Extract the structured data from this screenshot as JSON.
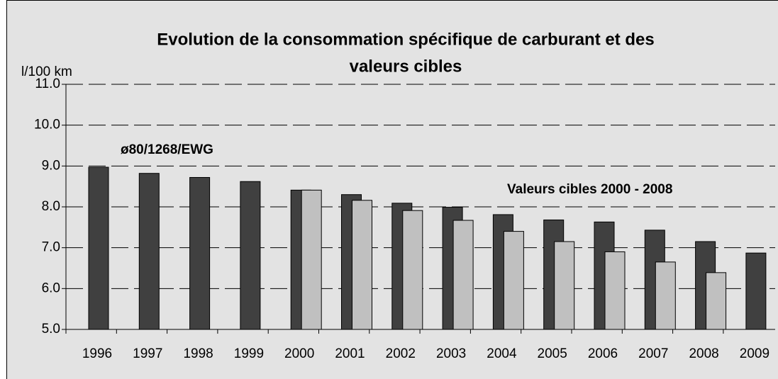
{
  "chart_data": {
    "type": "bar",
    "title": [
      "Evolution de la consommation spécifique de carburant et des",
      "valeurs cibles"
    ],
    "y_label": "l/100 km",
    "categories": [
      "1996",
      "1997",
      "1998",
      "1999",
      "2000",
      "2001",
      "2002",
      "2003",
      "2004",
      "2005",
      "2006",
      "2007",
      "2008",
      "2009"
    ],
    "series": [
      {
        "name": "ø80/1268/EWG",
        "color": "#404040",
        "values": [
          8.97,
          8.82,
          8.72,
          8.62,
          8.41,
          8.3,
          8.09,
          7.99,
          7.81,
          7.68,
          7.63,
          7.43,
          7.15,
          6.87
        ]
      },
      {
        "name": "Valeurs cibles 2000 - 2008",
        "color": "#c0c0c0",
        "values": [
          null,
          null,
          null,
          null,
          8.41,
          8.16,
          7.91,
          7.67,
          7.4,
          7.15,
          6.9,
          6.65,
          6.39,
          null
        ]
      }
    ],
    "ylim": [
      5,
      11
    ],
    "yticks": [
      {
        "value": 5,
        "label": "5.0"
      },
      {
        "value": 6,
        "label": "6.0"
      },
      {
        "value": 7,
        "label": "7.0"
      },
      {
        "value": 8,
        "label": "8.0"
      },
      {
        "value": 9,
        "label": "9.0"
      },
      {
        "value": 10,
        "label": "10.0"
      },
      {
        "value": 11,
        "label": "11.0"
      }
    ],
    "grid": true
  }
}
